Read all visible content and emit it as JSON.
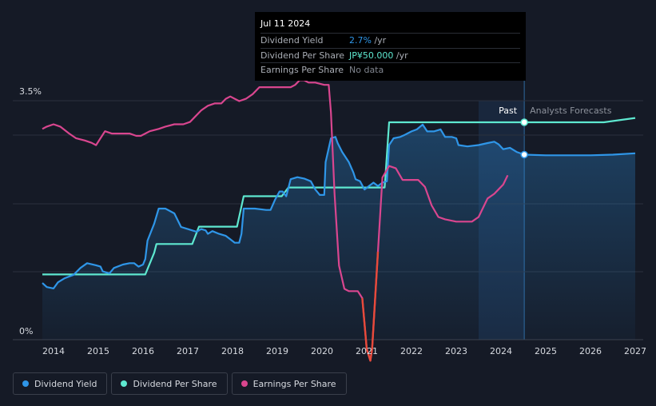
{
  "tooltip": {
    "date": "Jul 11 2024",
    "rows": [
      {
        "label": "Dividend Yield",
        "value": "2.7%",
        "unit": " /yr",
        "color": "#2f96e8"
      },
      {
        "label": "Dividend Per Share",
        "value": "JP¥50.000",
        "unit": " /yr",
        "color": "#5ee8d0"
      },
      {
        "label": "Earnings Per Share",
        "value": "No data",
        "unit": "",
        "color": "#80858f"
      }
    ]
  },
  "legend": [
    {
      "label": "Dividend Yield",
      "color": "#2f96e8"
    },
    {
      "label": "Dividend Per Share",
      "color": "#5ee8d0"
    },
    {
      "label": "Earnings Per Share",
      "color": "#d9468f"
    }
  ],
  "chart_data": {
    "type": "line",
    "title": "",
    "xlabel": "",
    "ylabel": "",
    "xlim": [
      2013.75,
      2027.0
    ],
    "ylim": [
      0,
      3.5
    ],
    "x_ticks": [
      "2014",
      "2015",
      "2016",
      "2017",
      "2018",
      "2019",
      "2020",
      "2021",
      "2022",
      "2023",
      "2024",
      "2025",
      "2026",
      "2027"
    ],
    "y_ticks": [
      {
        "value": 3.5,
        "label": "3.5%"
      },
      {
        "value": 0,
        "label": "0%"
      }
    ],
    "past_label": "Past",
    "forecast_label": "Analysts Forecasts",
    "forecast_start": 2023.5,
    "current_x": 2024.52,
    "grid": true,
    "series": [
      {
        "name": "Dividend Per Share",
        "color": "#5ee8d0",
        "unit": "JP¥",
        "points": [
          [
            2013.75,
            15
          ],
          [
            2016.05,
            15
          ],
          [
            2016.25,
            20
          ],
          [
            2016.3,
            22
          ],
          [
            2017.1,
            22
          ],
          [
            2017.25,
            26
          ],
          [
            2018.1,
            26
          ],
          [
            2018.25,
            33
          ],
          [
            2019.1,
            33
          ],
          [
            2019.25,
            35
          ],
          [
            2021.4,
            35
          ],
          [
            2021.5,
            50
          ],
          [
            2024.52,
            50
          ],
          [
            2026.3,
            50
          ],
          [
            2027.0,
            51
          ]
        ]
      },
      {
        "name": "Dividend Yield",
        "color": "#2f96e8",
        "unit": "%",
        "area": true,
        "points": [
          [
            2013.75,
            0.83
          ],
          [
            2013.85,
            0.77
          ],
          [
            2014.0,
            0.75
          ],
          [
            2014.1,
            0.84
          ],
          [
            2014.25,
            0.9
          ],
          [
            2014.45,
            0.95
          ],
          [
            2014.6,
            1.05
          ],
          [
            2014.75,
            1.12
          ],
          [
            2014.95,
            1.09
          ],
          [
            2015.05,
            1.07
          ],
          [
            2015.1,
            1.0
          ],
          [
            2015.25,
            0.97
          ],
          [
            2015.35,
            1.05
          ],
          [
            2015.55,
            1.1
          ],
          [
            2015.7,
            1.12
          ],
          [
            2015.8,
            1.12
          ],
          [
            2015.9,
            1.07
          ],
          [
            2016.0,
            1.1
          ],
          [
            2016.05,
            1.18
          ],
          [
            2016.1,
            1.45
          ],
          [
            2016.25,
            1.7
          ],
          [
            2016.35,
            1.92
          ],
          [
            2016.5,
            1.92
          ],
          [
            2016.7,
            1.85
          ],
          [
            2016.85,
            1.65
          ],
          [
            2017.0,
            1.62
          ],
          [
            2017.1,
            1.6
          ],
          [
            2017.2,
            1.58
          ],
          [
            2017.3,
            1.62
          ],
          [
            2017.4,
            1.6
          ],
          [
            2017.45,
            1.55
          ],
          [
            2017.55,
            1.59
          ],
          [
            2017.7,
            1.55
          ],
          [
            2017.85,
            1.52
          ],
          [
            2017.95,
            1.47
          ],
          [
            2018.05,
            1.42
          ],
          [
            2018.15,
            1.42
          ],
          [
            2018.2,
            1.55
          ],
          [
            2018.25,
            1.92
          ],
          [
            2018.5,
            1.92
          ],
          [
            2018.75,
            1.9
          ],
          [
            2018.85,
            1.9
          ],
          [
            2018.95,
            2.05
          ],
          [
            2019.05,
            2.17
          ],
          [
            2019.12,
            2.17
          ],
          [
            2019.2,
            2.1
          ],
          [
            2019.3,
            2.35
          ],
          [
            2019.45,
            2.38
          ],
          [
            2019.6,
            2.36
          ],
          [
            2019.75,
            2.32
          ],
          [
            2019.85,
            2.2
          ],
          [
            2019.95,
            2.12
          ],
          [
            2020.05,
            2.12
          ],
          [
            2020.08,
            2.6
          ],
          [
            2020.2,
            2.95
          ],
          [
            2020.3,
            2.97
          ],
          [
            2020.35,
            2.88
          ],
          [
            2020.45,
            2.75
          ],
          [
            2020.6,
            2.6
          ],
          [
            2020.7,
            2.45
          ],
          [
            2020.75,
            2.35
          ],
          [
            2020.85,
            2.32
          ],
          [
            2020.95,
            2.2
          ],
          [
            2021.05,
            2.25
          ],
          [
            2021.15,
            2.3
          ],
          [
            2021.25,
            2.25
          ],
          [
            2021.35,
            2.3
          ],
          [
            2021.45,
            2.32
          ],
          [
            2021.5,
            2.85
          ],
          [
            2021.6,
            2.95
          ],
          [
            2021.75,
            2.97
          ],
          [
            2021.85,
            3.0
          ],
          [
            2022.0,
            3.05
          ],
          [
            2022.12,
            3.08
          ],
          [
            2022.25,
            3.15
          ],
          [
            2022.35,
            3.05
          ],
          [
            2022.5,
            3.05
          ],
          [
            2022.65,
            3.08
          ],
          [
            2022.75,
            2.97
          ],
          [
            2022.9,
            2.97
          ],
          [
            2023.0,
            2.95
          ],
          [
            2023.05,
            2.85
          ],
          [
            2023.25,
            2.83
          ],
          [
            2023.5,
            2.85
          ],
          [
            2023.7,
            2.88
          ],
          [
            2023.85,
            2.9
          ],
          [
            2023.95,
            2.86
          ],
          [
            2024.05,
            2.79
          ],
          [
            2024.2,
            2.81
          ],
          [
            2024.35,
            2.75
          ],
          [
            2024.52,
            2.71
          ],
          [
            2025.0,
            2.7
          ],
          [
            2026.0,
            2.7
          ],
          [
            2026.5,
            2.71
          ],
          [
            2027.0,
            2.73
          ]
        ]
      },
      {
        "name": "Earnings Per Share",
        "color": "#d9468f",
        "color_negative": "#e84a3a",
        "unit": "JP¥",
        "points": [
          [
            2013.75,
            83
          ],
          [
            2013.85,
            84
          ],
          [
            2014.0,
            85
          ],
          [
            2014.15,
            84
          ],
          [
            2014.35,
            81
          ],
          [
            2014.5,
            79
          ],
          [
            2014.7,
            78
          ],
          [
            2014.85,
            77
          ],
          [
            2014.95,
            76
          ],
          [
            2015.05,
            79
          ],
          [
            2015.15,
            82
          ],
          [
            2015.3,
            81
          ],
          [
            2015.5,
            81
          ],
          [
            2015.7,
            81
          ],
          [
            2015.85,
            80
          ],
          [
            2015.95,
            80
          ],
          [
            2016.05,
            81
          ],
          [
            2016.15,
            82
          ],
          [
            2016.35,
            83
          ],
          [
            2016.5,
            84
          ],
          [
            2016.7,
            85
          ],
          [
            2016.9,
            85
          ],
          [
            2017.05,
            86
          ],
          [
            2017.15,
            88
          ],
          [
            2017.3,
            91
          ],
          [
            2017.45,
            93
          ],
          [
            2017.6,
            94
          ],
          [
            2017.75,
            94
          ],
          [
            2017.85,
            96
          ],
          [
            2017.95,
            97
          ],
          [
            2018.05,
            96
          ],
          [
            2018.15,
            95
          ],
          [
            2018.3,
            96
          ],
          [
            2018.45,
            98
          ],
          [
            2018.6,
            101
          ],
          [
            2018.75,
            101
          ],
          [
            2019.0,
            101
          ],
          [
            2019.15,
            101
          ],
          [
            2019.3,
            101
          ],
          [
            2019.4,
            102
          ],
          [
            2019.5,
            104
          ],
          [
            2019.6,
            104
          ],
          [
            2019.7,
            103
          ],
          [
            2019.85,
            103
          ],
          [
            2020.05,
            102
          ],
          [
            2020.15,
            102
          ],
          [
            2020.2,
            90
          ],
          [
            2020.28,
            55
          ],
          [
            2020.38,
            24
          ],
          [
            2020.5,
            14
          ],
          [
            2020.6,
            13
          ],
          [
            2020.7,
            13
          ],
          [
            2020.8,
            13
          ],
          [
            2020.9,
            10
          ],
          [
            2021.0,
            -12
          ],
          [
            2021.08,
            -17
          ],
          [
            2021.12,
            -12
          ],
          [
            2021.25,
            30
          ],
          [
            2021.35,
            62
          ],
          [
            2021.5,
            67
          ],
          [
            2021.65,
            66
          ],
          [
            2021.8,
            61
          ],
          [
            2022.0,
            61
          ],
          [
            2022.15,
            61
          ],
          [
            2022.3,
            58
          ],
          [
            2022.45,
            50
          ],
          [
            2022.6,
            45
          ],
          [
            2022.75,
            44
          ],
          [
            2023.0,
            43
          ],
          [
            2023.2,
            43
          ],
          [
            2023.35,
            43
          ],
          [
            2023.5,
            45
          ],
          [
            2023.6,
            49
          ],
          [
            2023.7,
            53
          ],
          [
            2023.85,
            55
          ],
          [
            2023.95,
            57
          ],
          [
            2024.05,
            59
          ],
          [
            2024.15,
            63
          ]
        ]
      }
    ]
  }
}
